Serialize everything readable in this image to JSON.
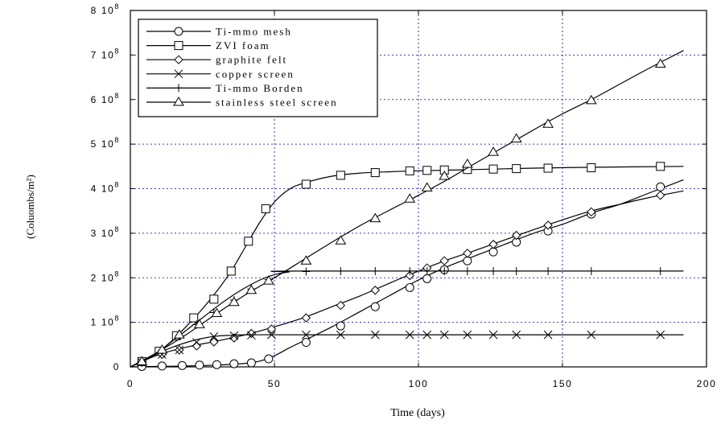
{
  "chart_data": {
    "type": "line",
    "xlabel": "Time (days)",
    "ylabel": "(Coluombs/m²)",
    "xlim": [
      0,
      200
    ],
    "ylim": [
      0,
      800000000
    ],
    "x_ticks": [
      {
        "value": 0,
        "label": "0"
      },
      {
        "value": 50,
        "label": "50"
      },
      {
        "value": 100,
        "label": "100"
      },
      {
        "value": 150,
        "label": "150"
      },
      {
        "value": 200,
        "label": "200"
      }
    ],
    "y_ticks": [
      {
        "value": 0,
        "label": "0",
        "exp": ""
      },
      {
        "value": 100000000,
        "label": "1 10",
        "exp": "8"
      },
      {
        "value": 200000000,
        "label": "2 10",
        "exp": "8"
      },
      {
        "value": 300000000,
        "label": "3 10",
        "exp": "8"
      },
      {
        "value": 400000000,
        "label": "4 10",
        "exp": "8"
      },
      {
        "value": 500000000,
        "label": "5 10",
        "exp": "8"
      },
      {
        "value": 600000000,
        "label": "6 10",
        "exp": "8"
      },
      {
        "value": 700000000,
        "label": "7 10",
        "exp": "8"
      },
      {
        "value": 800000000,
        "label": "8 10",
        "exp": "8"
      }
    ],
    "grid": true,
    "legend_position": "top-left",
    "series": [
      {
        "name": "Ti-mmo mesh",
        "marker": "circle",
        "curve": [
          [
            0,
            0
          ],
          [
            10,
            1000000
          ],
          [
            20,
            2000000
          ],
          [
            30,
            4000000
          ],
          [
            40,
            8000000
          ],
          [
            45,
            13000000
          ],
          [
            50,
            25000000
          ],
          [
            55,
            42000000
          ],
          [
            60,
            58000000
          ],
          [
            70,
            90000000
          ],
          [
            80,
            125000000
          ],
          [
            90,
            160000000
          ],
          [
            100,
            195000000
          ],
          [
            110,
            225000000
          ],
          [
            120,
            250000000
          ],
          [
            130,
            275000000
          ],
          [
            140,
            300000000
          ],
          [
            150,
            320000000
          ],
          [
            160,
            345000000
          ],
          [
            170,
            365000000
          ],
          [
            180,
            390000000
          ],
          [
            192,
            420000000
          ]
        ],
        "points": [
          [
            4,
            1000000
          ],
          [
            11,
            2000000
          ],
          [
            18,
            3000000
          ],
          [
            24,
            4000000
          ],
          [
            30,
            5000000
          ],
          [
            36,
            7000000
          ],
          [
            42,
            9000000
          ],
          [
            48,
            18000000
          ],
          [
            61,
            55000000
          ],
          [
            73,
            92000000
          ],
          [
            85,
            135000000
          ],
          [
            97,
            178000000
          ],
          [
            103,
            198000000
          ],
          [
            109,
            218000000
          ],
          [
            117,
            238000000
          ],
          [
            126,
            258000000
          ],
          [
            134,
            280000000
          ],
          [
            145,
            305000000
          ],
          [
            160,
            343000000
          ],
          [
            184,
            404000000
          ]
        ]
      },
      {
        "name": "ZVI foam",
        "marker": "square",
        "curve": [
          [
            0,
            0
          ],
          [
            5,
            15000000
          ],
          [
            10,
            35000000
          ],
          [
            15,
            62000000
          ],
          [
            20,
            95000000
          ],
          [
            25,
            130000000
          ],
          [
            30,
            170000000
          ],
          [
            35,
            215000000
          ],
          [
            40,
            270000000
          ],
          [
            45,
            325000000
          ],
          [
            50,
            370000000
          ],
          [
            55,
            398000000
          ],
          [
            60,
            412000000
          ],
          [
            70,
            428000000
          ],
          [
            80,
            435000000
          ],
          [
            90,
            438000000
          ],
          [
            100,
            440000000
          ],
          [
            120,
            443000000
          ],
          [
            140,
            446000000
          ],
          [
            160,
            448000000
          ],
          [
            192,
            450000000
          ]
        ],
        "points": [
          [
            4,
            12000000
          ],
          [
            10,
            35000000
          ],
          [
            16,
            70000000
          ],
          [
            22,
            110000000
          ],
          [
            29,
            152000000
          ],
          [
            35,
            215000000
          ],
          [
            41,
            282000000
          ],
          [
            47,
            355000000
          ],
          [
            61,
            410000000
          ],
          [
            73,
            430000000
          ],
          [
            85,
            436000000
          ],
          [
            97,
            440000000
          ],
          [
            103,
            441000000
          ],
          [
            109,
            442000000
          ],
          [
            117,
            443000000
          ],
          [
            126,
            444000000
          ],
          [
            134,
            445000000
          ],
          [
            145,
            446000000
          ],
          [
            160,
            447000000
          ],
          [
            184,
            450000000
          ]
        ]
      },
      {
        "name": "graphite felt",
        "marker": "diamond",
        "curve": [
          [
            0,
            0
          ],
          [
            10,
            28000000
          ],
          [
            20,
            45000000
          ],
          [
            30,
            58000000
          ],
          [
            40,
            72000000
          ],
          [
            50,
            90000000
          ],
          [
            60,
            110000000
          ],
          [
            70,
            135000000
          ],
          [
            80,
            160000000
          ],
          [
            90,
            188000000
          ],
          [
            100,
            215000000
          ],
          [
            110,
            240000000
          ],
          [
            120,
            262000000
          ],
          [
            130,
            285000000
          ],
          [
            140,
            308000000
          ],
          [
            150,
            330000000
          ],
          [
            160,
            350000000
          ],
          [
            170,
            365000000
          ],
          [
            180,
            380000000
          ],
          [
            192,
            395000000
          ]
        ],
        "points": [
          [
            4,
            10000000
          ],
          [
            11,
            28000000
          ],
          [
            17,
            38000000
          ],
          [
            23,
            47000000
          ],
          [
            29,
            56000000
          ],
          [
            36,
            65000000
          ],
          [
            42,
            75000000
          ],
          [
            49,
            85000000
          ],
          [
            61,
            110000000
          ],
          [
            73,
            138000000
          ],
          [
            85,
            172000000
          ],
          [
            97,
            205000000
          ],
          [
            103,
            222000000
          ],
          [
            109,
            238000000
          ],
          [
            117,
            255000000
          ],
          [
            126,
            275000000
          ],
          [
            134,
            295000000
          ],
          [
            145,
            318000000
          ],
          [
            160,
            348000000
          ],
          [
            184,
            385000000
          ]
        ]
      },
      {
        "name": "copper screen",
        "marker": "x",
        "curve": [
          [
            0,
            0
          ],
          [
            5,
            15000000
          ],
          [
            10,
            32000000
          ],
          [
            15,
            45000000
          ],
          [
            20,
            56000000
          ],
          [
            25,
            64000000
          ],
          [
            30,
            69000000
          ],
          [
            35,
            71000000
          ],
          [
            40,
            72000000
          ],
          [
            60,
            72000000
          ],
          [
            192,
            72000000
          ]
        ],
        "points": [
          [
            4,
            10000000
          ],
          [
            11,
            28000000
          ],
          [
            17,
            38000000
          ],
          [
            23,
            55000000
          ],
          [
            29,
            68000000
          ],
          [
            36,
            70000000
          ],
          [
            42,
            71000000
          ],
          [
            49,
            72000000
          ],
          [
            61,
            72000000
          ],
          [
            73,
            72000000
          ],
          [
            85,
            72000000
          ],
          [
            97,
            72000000
          ],
          [
            103,
            72000000
          ],
          [
            109,
            72000000
          ],
          [
            117,
            72000000
          ],
          [
            126,
            72000000
          ],
          [
            134,
            72000000
          ],
          [
            145,
            72000000
          ],
          [
            160,
            72000000
          ],
          [
            184,
            72000000
          ]
        ]
      },
      {
        "name": "Ti-mmo Borden",
        "marker": "plus",
        "curve": [
          [
            0,
            0
          ],
          [
            5,
            15000000
          ],
          [
            10,
            35000000
          ],
          [
            15,
            60000000
          ],
          [
            20,
            85000000
          ],
          [
            25,
            110000000
          ],
          [
            30,
            135000000
          ],
          [
            35,
            158000000
          ],
          [
            40,
            178000000
          ],
          [
            45,
            195000000
          ],
          [
            50,
            207000000
          ],
          [
            55,
            213000000
          ],
          [
            60,
            215000000
          ],
          [
            192,
            215000000
          ]
        ],
        "points": [
          [
            4,
            12000000
          ],
          [
            11,
            36000000
          ],
          [
            17,
            70000000
          ],
          [
            23,
            95000000
          ],
          [
            29,
            122000000
          ],
          [
            36,
            150000000
          ],
          [
            42,
            175000000
          ],
          [
            48,
            196000000
          ],
          [
            61,
            214000000
          ],
          [
            73,
            215000000
          ],
          [
            85,
            215000000
          ],
          [
            97,
            215000000
          ],
          [
            103,
            215000000
          ],
          [
            109,
            215000000
          ],
          [
            117,
            215000000
          ],
          [
            126,
            215000000
          ],
          [
            134,
            215000000
          ],
          [
            145,
            215000000
          ],
          [
            160,
            215000000
          ],
          [
            184,
            215000000
          ]
        ]
      },
      {
        "name": "stainless steel screen",
        "marker": "triangle",
        "curve": [
          [
            0,
            0
          ],
          [
            10,
            35000000
          ],
          [
            20,
            75000000
          ],
          [
            30,
            120000000
          ],
          [
            40,
            162000000
          ],
          [
            50,
            200000000
          ],
          [
            60,
            240000000
          ],
          [
            70,
            280000000
          ],
          [
            80,
            318000000
          ],
          [
            90,
            352000000
          ],
          [
            100,
            385000000
          ],
          [
            110,
            420000000
          ],
          [
            120,
            458000000
          ],
          [
            130,
            495000000
          ],
          [
            140,
            532000000
          ],
          [
            150,
            568000000
          ],
          [
            160,
            600000000
          ],
          [
            170,
            635000000
          ],
          [
            180,
            670000000
          ],
          [
            192,
            710000000
          ]
        ],
        "points": [
          [
            4,
            12000000
          ],
          [
            11,
            38000000
          ],
          [
            17,
            72000000
          ],
          [
            24,
            95000000
          ],
          [
            30,
            120000000
          ],
          [
            36,
            145000000
          ],
          [
            42,
            172000000
          ],
          [
            48,
            193000000
          ],
          [
            61,
            238000000
          ],
          [
            73,
            283000000
          ],
          [
            85,
            333000000
          ],
          [
            97,
            377000000
          ],
          [
            103,
            402000000
          ],
          [
            109,
            428000000
          ],
          [
            117,
            455000000
          ],
          [
            126,
            482000000
          ],
          [
            134,
            512000000
          ],
          [
            145,
            545000000
          ],
          [
            160,
            598000000
          ],
          [
            184,
            680000000
          ]
        ]
      }
    ]
  }
}
